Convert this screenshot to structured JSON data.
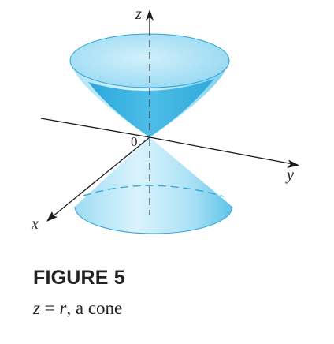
{
  "figure": {
    "axis_x": "x",
    "axis_y": "y",
    "axis_z": "z",
    "origin": "0",
    "title": "FIGURE 5",
    "caption_var_z": "z",
    "caption_eq": " = ",
    "caption_var_r": "r",
    "caption_rest": ", a cone"
  },
  "colors": {
    "cone_light": "#c7ecf8",
    "cone_mid": "#7dd0ee",
    "cone_dark": "#35b3e2",
    "cone_edge": "#2aa5d6",
    "axis": "#1a1a1a"
  }
}
